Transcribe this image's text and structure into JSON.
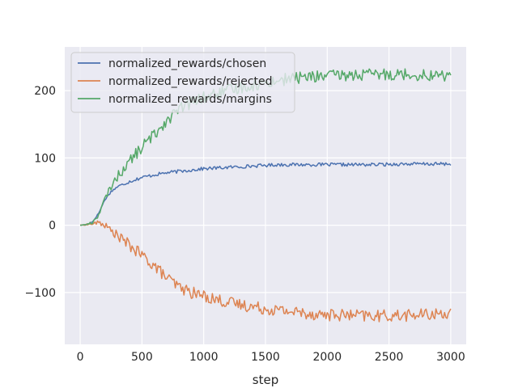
{
  "chart_data": {
    "type": "line",
    "title": "",
    "xlabel": "step",
    "ylabel": "",
    "xlim": [
      -125,
      3125
    ],
    "ylim": [
      -177,
      265
    ],
    "x_ticks": [
      0,
      500,
      1000,
      1500,
      2000,
      2500,
      3000
    ],
    "y_ticks": [
      -100,
      0,
      100,
      200
    ],
    "grid": true,
    "legend_position": "top-left",
    "background": "#eaeaf2",
    "series": [
      {
        "name": "normalized_rewards/chosen",
        "color": "#4c72b0",
        "x": [
          0,
          50,
          100,
          150,
          200,
          250,
          300,
          400,
          500,
          600,
          700,
          800,
          900,
          1000,
          1100,
          1200,
          1300,
          1400,
          1500,
          1600,
          1700,
          1800,
          1900,
          2000,
          2200,
          2400,
          2600,
          2800,
          3000
        ],
        "y": [
          0,
          1,
          5,
          18,
          38,
          50,
          57,
          65,
          71,
          75,
          78,
          80,
          82,
          84,
          85,
          86,
          87,
          88,
          89,
          90,
          90,
          90,
          90,
          90,
          90,
          90,
          91,
          91,
          91
        ]
      },
      {
        "name": "normalized_rewards/rejected",
        "color": "#dd8452",
        "x": [
          0,
          50,
          100,
          150,
          200,
          250,
          300,
          400,
          500,
          600,
          700,
          800,
          900,
          1000,
          1100,
          1200,
          1300,
          1400,
          1500,
          1600,
          1700,
          1800,
          1900,
          2000,
          2200,
          2400,
          2600,
          2800,
          3000
        ],
        "y": [
          0,
          1,
          2,
          4,
          0,
          -8,
          -15,
          -30,
          -45,
          -60,
          -78,
          -92,
          -100,
          -105,
          -110,
          -115,
          -118,
          -121,
          -124,
          -126,
          -128,
          -130,
          -132,
          -133,
          -134,
          -135,
          -134,
          -133,
          -130
        ]
      },
      {
        "name": "normalized_rewards/margins",
        "color": "#55a868",
        "x": [
          0,
          50,
          100,
          150,
          200,
          250,
          300,
          400,
          500,
          600,
          700,
          800,
          900,
          1000,
          1100,
          1200,
          1300,
          1400,
          1500,
          1600,
          1700,
          1800,
          1900,
          2000,
          2200,
          2400,
          2600,
          2800,
          3000
        ],
        "y": [
          0,
          1,
          4,
          16,
          38,
          58,
          72,
          95,
          116,
          135,
          156,
          172,
          182,
          190,
          195,
          200,
          205,
          208,
          212,
          215,
          218,
          220,
          221,
          222,
          223,
          224,
          225,
          223,
          222
        ]
      }
    ]
  }
}
